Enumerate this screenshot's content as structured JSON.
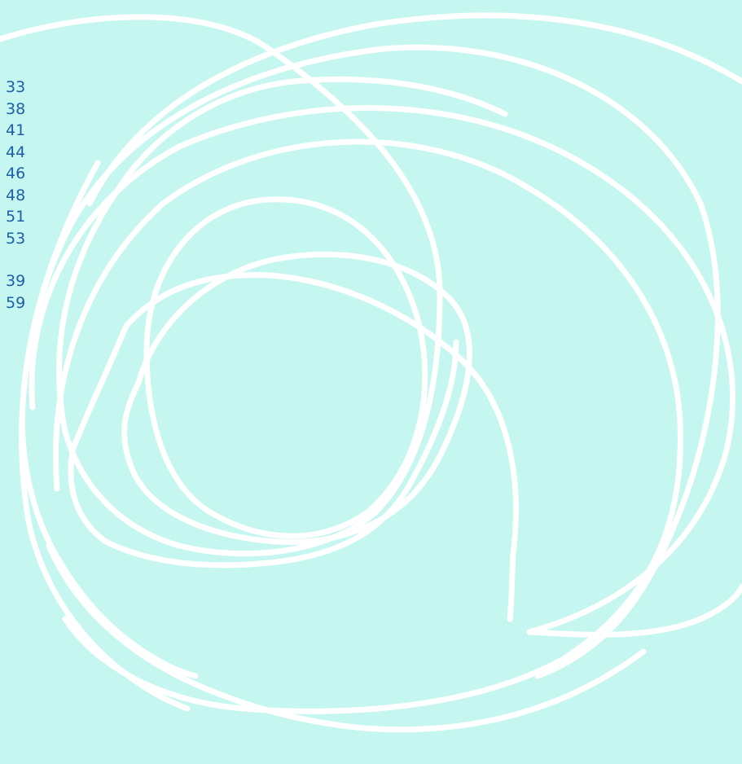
{
  "number_groups": [
    {
      "items": [
        "33",
        "38",
        "41",
        "44",
        "46",
        "48",
        "51",
        "53"
      ]
    },
    {
      "items": [
        "39",
        "59"
      ]
    }
  ],
  "colors": {
    "background": "#c5f6f0",
    "stroke": "#ffffff",
    "text": "#1f5fa6"
  }
}
